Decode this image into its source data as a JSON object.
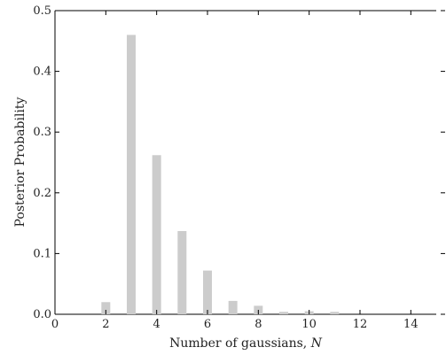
{
  "chart_data": {
    "type": "bar",
    "title": "",
    "xlabel": "Number of gaussians, ",
    "xlabel_var": "N",
    "ylabel": "Posterior Probability",
    "xlim": [
      0,
      15
    ],
    "ylim": [
      0,
      0.5
    ],
    "xticks": [
      0,
      2,
      4,
      6,
      8,
      10,
      12,
      14
    ],
    "yticks": [
      0.0,
      0.1,
      0.2,
      0.3,
      0.4,
      0.5
    ],
    "ytick_labels": [
      "0.0",
      "0.1",
      "0.2",
      "0.3",
      "0.4",
      "0.5"
    ],
    "x": [
      2,
      3,
      4,
      5,
      6,
      7,
      8,
      9,
      10,
      11
    ],
    "values": [
      0.02,
      0.46,
      0.262,
      0.137,
      0.072,
      0.022,
      0.014,
      0.004,
      0.005,
      0.004
    ],
    "bar_color": "#cccccc",
    "grid": false
  }
}
